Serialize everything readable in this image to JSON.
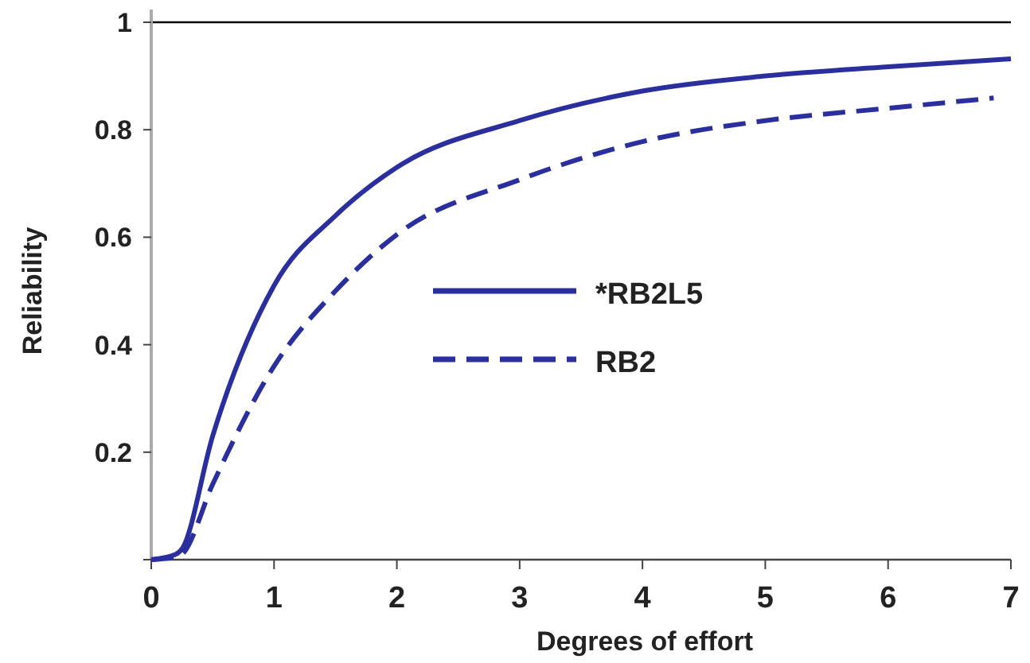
{
  "chart_data": {
    "type": "line",
    "xlabel": "Degrees of effort",
    "ylabel": "Reliability",
    "xlim": [
      0,
      7
    ],
    "ylim": [
      0,
      1
    ],
    "xticks": [
      0,
      1,
      2,
      3,
      4,
      5,
      6,
      7
    ],
    "yticks": [
      {
        "value": 0,
        "label": null
      },
      {
        "value": 0.2,
        "label": "0.2"
      },
      {
        "value": 0.4,
        "label": "0.4"
      },
      {
        "value": 0.6,
        "label": "0.6"
      },
      {
        "value": 0.8,
        "label": "0.8"
      },
      {
        "value": 1,
        "label": "1"
      }
    ],
    "ref_lines": [
      {
        "axis": "y",
        "value": 1,
        "color": "#000000"
      }
    ],
    "legend": "center",
    "grid": false,
    "series": [
      {
        "name": "*RB2L5",
        "color": "#2b2f9e",
        "line_style": "solid",
        "x": [
          0,
          0.2,
          0.25,
          0.5,
          1,
          1.5,
          2,
          3,
          4,
          5,
          6,
          7
        ],
        "values": [
          0,
          0.01,
          0.02,
          0.23,
          0.51,
          0.64,
          0.73,
          0.817,
          0.872,
          0.9,
          0.917,
          0.932
        ]
      },
      {
        "name": "RB2",
        "color": "#2b2f9e",
        "line_style": "dashed",
        "x": [
          0,
          0.2,
          0.25,
          0.5,
          1,
          1.5,
          2,
          3,
          4,
          5,
          6,
          6.86
        ],
        "values": [
          0,
          0.005,
          0.01,
          0.14,
          0.36,
          0.5,
          0.605,
          0.707,
          0.778,
          0.817,
          0.84,
          0.859
        ]
      }
    ]
  }
}
